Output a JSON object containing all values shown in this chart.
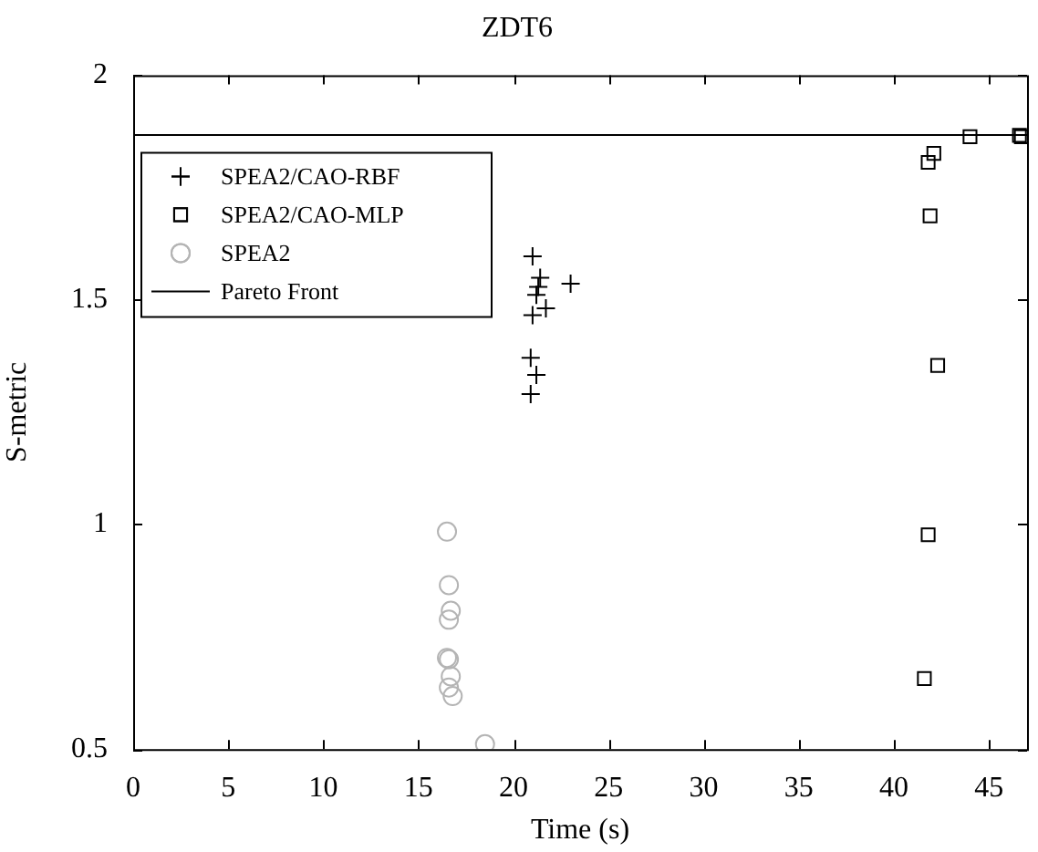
{
  "chart_data": {
    "type": "scatter",
    "title": "ZDT6",
    "xlabel": "Time (s)",
    "ylabel": "S-metric",
    "xlim": [
      0,
      47
    ],
    "xticks": [
      0,
      5,
      10,
      15,
      20,
      25,
      30,
      35,
      40,
      45
    ],
    "ylim": [
      0.5,
      2
    ],
    "yticks": [
      0.5,
      1,
      1.5,
      2
    ],
    "grid": false,
    "legend": "top left",
    "series": [
      {
        "name": "SPEA2/CAO-RBF",
        "color": "#000000",
        "marker": "cross",
        "x": [
          21.0,
          21.4,
          23.0,
          21.3,
          21.2,
          21.7,
          21.0,
          20.9,
          21.2,
          20.9
        ],
        "values": [
          1.597,
          1.549,
          1.536,
          1.529,
          1.511,
          1.481,
          1.466,
          1.371,
          1.333,
          1.29
        ]
      },
      {
        "name": "SPEA2/CAO-MLP",
        "color": "#000000",
        "marker": "square",
        "x": [
          44.0,
          46.6,
          46.7,
          42.1,
          41.8,
          41.9,
          42.3,
          41.8,
          41.6
        ],
        "values": [
          1.863,
          1.866,
          1.863,
          1.826,
          1.806,
          1.687,
          1.354,
          0.977,
          0.657
        ]
      },
      {
        "name": "SPEA2",
        "color": "#b4b4b4",
        "marker": "circle",
        "x": [
          16.5,
          16.6,
          16.7,
          16.6,
          16.5,
          16.6,
          16.7,
          16.6,
          16.8,
          18.5
        ],
        "values": [
          0.984,
          0.865,
          0.808,
          0.788,
          0.703,
          0.7,
          0.662,
          0.637,
          0.618,
          0.511
        ]
      },
      {
        "name": "Pareto Front",
        "type": "line",
        "color": "#000000",
        "marker": "none",
        "line_style": "solid",
        "x": [
          0,
          47
        ],
        "values": [
          1.867,
          1.867
        ]
      }
    ]
  }
}
